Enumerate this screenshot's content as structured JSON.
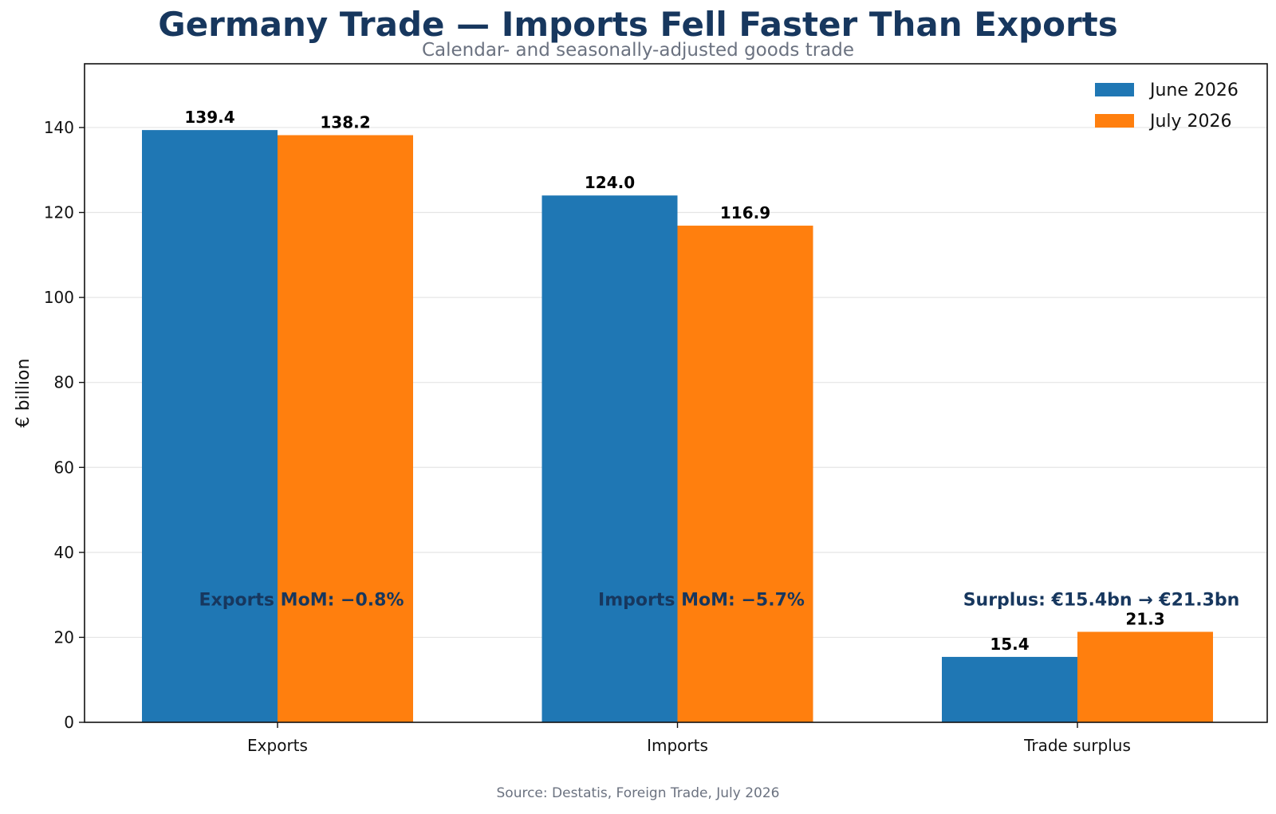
{
  "title": "Germany Trade — Imports Fell Faster Than Exports",
  "subtitle": "Calendar- and seasonally-adjusted goods trade",
  "source": "Source: Destatis, Foreign Trade, July 2026",
  "colors": {
    "june": "#1f77b4",
    "july": "#ff7f0e",
    "title": "#17375e",
    "grid": "#e5e5e5"
  },
  "chart_data": {
    "type": "bar",
    "categories": [
      "Exports",
      "Imports",
      "Trade surplus"
    ],
    "series": [
      {
        "name": "June 2026",
        "values": [
          139.4,
          124.0,
          15.4
        ],
        "labels": [
          "139.4",
          "124.0",
          "15.4"
        ],
        "color": "#1f77b4"
      },
      {
        "name": "July 2026",
        "values": [
          138.2,
          116.9,
          21.3
        ],
        "labels": [
          "138.2",
          "116.9",
          "21.3"
        ],
        "color": "#ff7f0e"
      }
    ],
    "ylabel": "€ billion",
    "xlabel": "",
    "ylim": [
      0,
      155
    ],
    "yticks": [
      0,
      20,
      40,
      60,
      80,
      100,
      120,
      140
    ],
    "grid": "y",
    "legend_position": "top-right",
    "annotations": [
      {
        "category": "Exports",
        "text": "Exports MoM: −0.8%",
        "y": 29
      },
      {
        "category": "Imports",
        "text": "Imports MoM: −5.7%",
        "y": 29
      },
      {
        "category": "Trade surplus",
        "text": "Surplus: €15.4bn → €21.3bn",
        "y": 29
      }
    ]
  }
}
